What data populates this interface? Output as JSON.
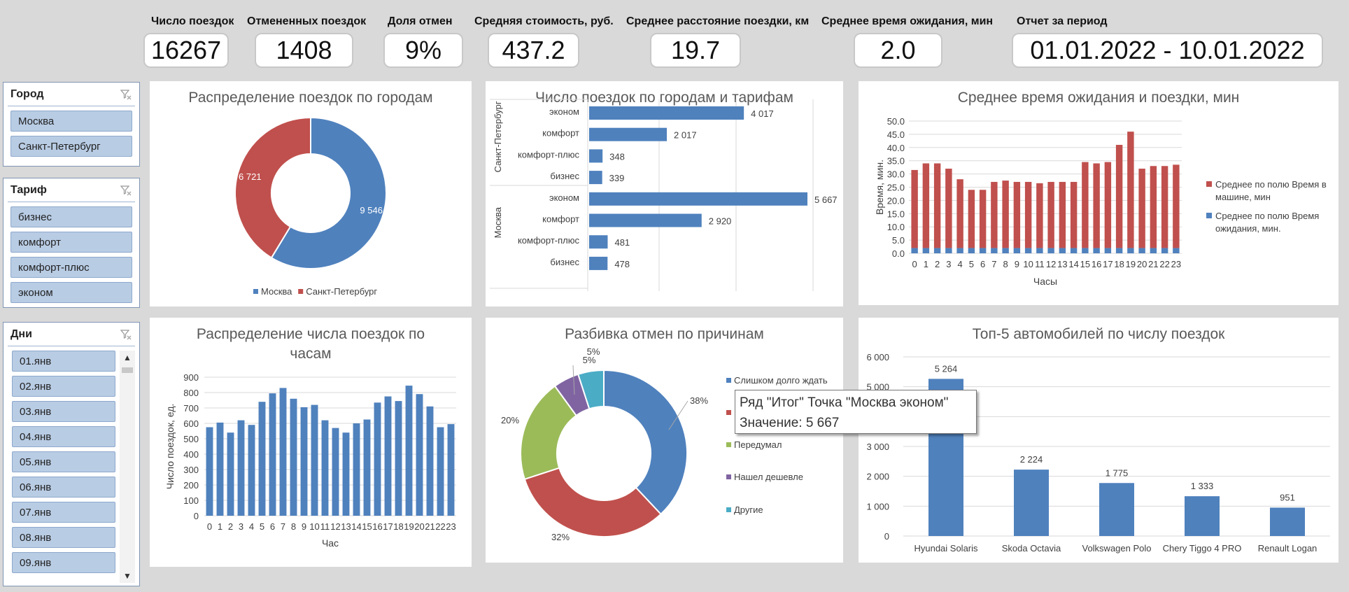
{
  "kpis": [
    {
      "label": "Число поездок",
      "value": "16267"
    },
    {
      "label": "Отмененных поездок",
      "value": "1408"
    },
    {
      "label": "Доля отмен",
      "value": "9%"
    },
    {
      "label": "Средняя стоимость, руб.",
      "value": "437.2"
    },
    {
      "label": "Среднее расстояние поездки, км",
      "value": "19.7"
    },
    {
      "label": "Среднее время ожидания, мин",
      "value": "2.0"
    },
    {
      "label": "Отчет за период",
      "value": "01.01.2022 - 10.01.2022"
    }
  ],
  "slicers": {
    "city": {
      "title": "Город",
      "items": [
        "Москва",
        "Санкт-Петербург"
      ]
    },
    "tariff": {
      "title": "Тариф",
      "items": [
        "бизнес",
        "комфорт",
        "комфорт-плюс",
        "эконом"
      ]
    },
    "days": {
      "title": "Дни",
      "items": [
        "01.янв",
        "02.янв",
        "03.янв",
        "04.янв",
        "05.янв",
        "06.янв",
        "07.янв",
        "08.янв",
        "09.янв"
      ]
    }
  },
  "tooltip": {
    "line1": "Ряд \"Итог\" Точка \"Москва эконом\"",
    "line2": "Значение: 5 667"
  },
  "colors": {
    "blue": "#4f81bd",
    "red": "#c0504d",
    "green": "#9bbb59",
    "purple": "#8064a2",
    "teal": "#4bacc6",
    "grid": "#d9d9d9",
    "axis_text": "#404040"
  },
  "chart_data": [
    {
      "id": "donut_city",
      "type": "pie",
      "title": "Распределение поездок по городам",
      "labels": [
        "Москва",
        "Санкт-Петербург"
      ],
      "values": [
        9546,
        6721
      ],
      "value_labels": [
        "9 546",
        "6 721"
      ],
      "legend": "bottom"
    },
    {
      "id": "bar_city_tariff",
      "type": "bar",
      "orientation": "horizontal",
      "title": "Число поездок по городам и тарифам",
      "groups": [
        {
          "name": "Санкт-Петербург",
          "categories": [
            "эконом",
            "комфорт",
            "комфорт-плюс",
            "бизнес"
          ],
          "values": [
            4017,
            2017,
            348,
            339
          ],
          "value_labels": [
            "4 017",
            "2 017",
            "348",
            "339"
          ]
        },
        {
          "name": "Москва",
          "categories": [
            "эконом",
            "комфорт",
            "комфорт-плюс",
            "бизнес"
          ],
          "values": [
            5667,
            2920,
            481,
            478
          ],
          "value_labels": [
            "5 667",
            "2 920",
            "481",
            "478"
          ]
        }
      ]
    },
    {
      "id": "stacked_wait",
      "type": "bar",
      "stacked": true,
      "title": "Среднее время ожидания и поездки, мин",
      "xlabel": "Часы",
      "ylabel": "Время, мин.",
      "ylim": [
        0,
        50
      ],
      "yticks": [
        "0.0",
        "5.0",
        "10.0",
        "15.0",
        "20.0",
        "25.0",
        "30.0",
        "35.0",
        "40.0",
        "45.0",
        "50.0"
      ],
      "categories": [
        "0",
        "1",
        "2",
        "3",
        "4",
        "5",
        "6",
        "7",
        "8",
        "9",
        "10",
        "11",
        "12",
        "13",
        "14",
        "15",
        "16",
        "17",
        "18",
        "19",
        "20",
        "21",
        "22",
        "23"
      ],
      "series": [
        {
          "name": "Среднее по полю Время ожидания, мин.",
          "values": [
            2,
            2,
            2,
            2,
            2,
            2,
            2,
            2,
            2,
            2,
            2,
            2,
            2,
            2,
            2,
            2,
            2,
            2,
            2,
            2,
            2,
            2,
            2,
            2
          ]
        },
        {
          "name": "Среднее по полю Время в машине, мин",
          "values": [
            29.5,
            32,
            32,
            30,
            26,
            22,
            22,
            25,
            25.5,
            25,
            25,
            24.5,
            25,
            25,
            25,
            32.5,
            32,
            32.5,
            39,
            44,
            30,
            31,
            31,
            31.5
          ]
        }
      ],
      "legend": "right"
    },
    {
      "id": "bar_hours",
      "type": "bar",
      "title": "Распределение числа поездок по часам",
      "xlabel": "Час",
      "ylabel": "Число поездок, ед.",
      "ylim": [
        0,
        900
      ],
      "yticks": [
        "0",
        "100",
        "200",
        "300",
        "400",
        "500",
        "600",
        "700",
        "800",
        "900"
      ],
      "categories": [
        "0",
        "1",
        "2",
        "3",
        "4",
        "5",
        "6",
        "7",
        "8",
        "9",
        "10",
        "11",
        "12",
        "13",
        "14",
        "15",
        "16",
        "17",
        "18",
        "19",
        "20",
        "21",
        "22",
        "23"
      ],
      "values": [
        575,
        605,
        540,
        620,
        590,
        740,
        795,
        830,
        760,
        705,
        720,
        620,
        570,
        540,
        600,
        625,
        735,
        775,
        745,
        845,
        790,
        710,
        575,
        595
      ]
    },
    {
      "id": "donut_cancel",
      "type": "pie",
      "title": "Разбивка отмен по причинам",
      "labels": [
        "Слишком долго ждать",
        "",
        "Передумал",
        "Нашел дешевле",
        "Другие"
      ],
      "values": [
        38,
        32,
        20,
        5,
        5
      ],
      "value_labels": [
        "38%",
        "32%",
        "20%",
        "5%",
        "5%"
      ],
      "legend": "right"
    },
    {
      "id": "bar_top_cars",
      "type": "bar",
      "title": "Топ-5 автомобилей по числу поездок",
      "ylim": [
        0,
        6000
      ],
      "yticks": [
        "0",
        "1 000",
        "2 000",
        "3 000",
        "4 000",
        "5 000",
        "6 000"
      ],
      "categories": [
        "Hyundai Solaris",
        "Skoda Octavia",
        "Volkswagen Polo",
        "Chery Tiggo 4 PRO",
        "Renault Logan"
      ],
      "values": [
        5264,
        2224,
        1775,
        1333,
        951
      ],
      "value_labels": [
        "5 264",
        "2 224",
        "1 775",
        "1 333",
        "951"
      ]
    }
  ]
}
